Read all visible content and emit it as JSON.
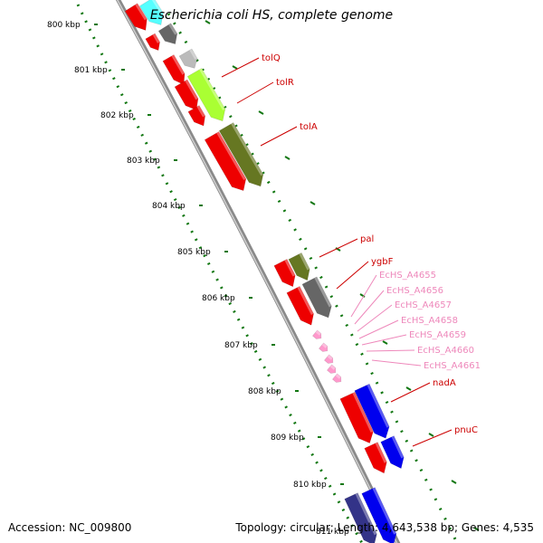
{
  "title": "Escherichia coli HS, complete genome",
  "footer": {
    "accession": "Accession: NC_009800",
    "summary": "Topology: circular; Length: 4,643,538 bp; Genes: 4,535"
  },
  "ticks": [
    {
      "label": "800 kbp"
    },
    {
      "label": "801 kbp"
    },
    {
      "label": "802 kbp"
    },
    {
      "label": "803 kbp"
    },
    {
      "label": "804 kbp"
    },
    {
      "label": "805 kbp"
    },
    {
      "label": "806 kbp"
    },
    {
      "label": "807 kbp"
    },
    {
      "label": "808 kbp"
    },
    {
      "label": "809 kbp"
    },
    {
      "label": "810 kbp"
    },
    {
      "label": "811 kbp"
    }
  ],
  "gene_labels": [
    {
      "name": "tolQ",
      "color": "#cc0000"
    },
    {
      "name": "tolR",
      "color": "#cc0000"
    },
    {
      "name": "tolA",
      "color": "#cc0000"
    },
    {
      "name": "pal",
      "color": "#cc0000"
    },
    {
      "name": "ygbF",
      "color": "#cc0000"
    },
    {
      "name": "EcHS_A4655",
      "color": "#ee88bb"
    },
    {
      "name": "EcHS_A4656",
      "color": "#ee88bb"
    },
    {
      "name": "EcHS_A4657",
      "color": "#ee88bb"
    },
    {
      "name": "EcHS_A4658",
      "color": "#ee88bb"
    },
    {
      "name": "EcHS_A4659",
      "color": "#ee88bb"
    },
    {
      "name": "EcHS_A4660",
      "color": "#ee88bb"
    },
    {
      "name": "EcHS_A4661",
      "color": "#ee88bb"
    },
    {
      "name": "nadA",
      "color": "#cc0000"
    },
    {
      "name": "pnuC",
      "color": "#cc0000"
    }
  ],
  "colors": {
    "backbone": "#888888",
    "tick_dots": "#117711",
    "cds_forward": "#ee0000",
    "gene_colors": [
      "#ee0000",
      "#55ffff",
      "#666666",
      "#bbbbbb",
      "#aaff33",
      "#667722",
      "#ff99cc",
      "#0000ee",
      "#333388"
    ]
  }
}
